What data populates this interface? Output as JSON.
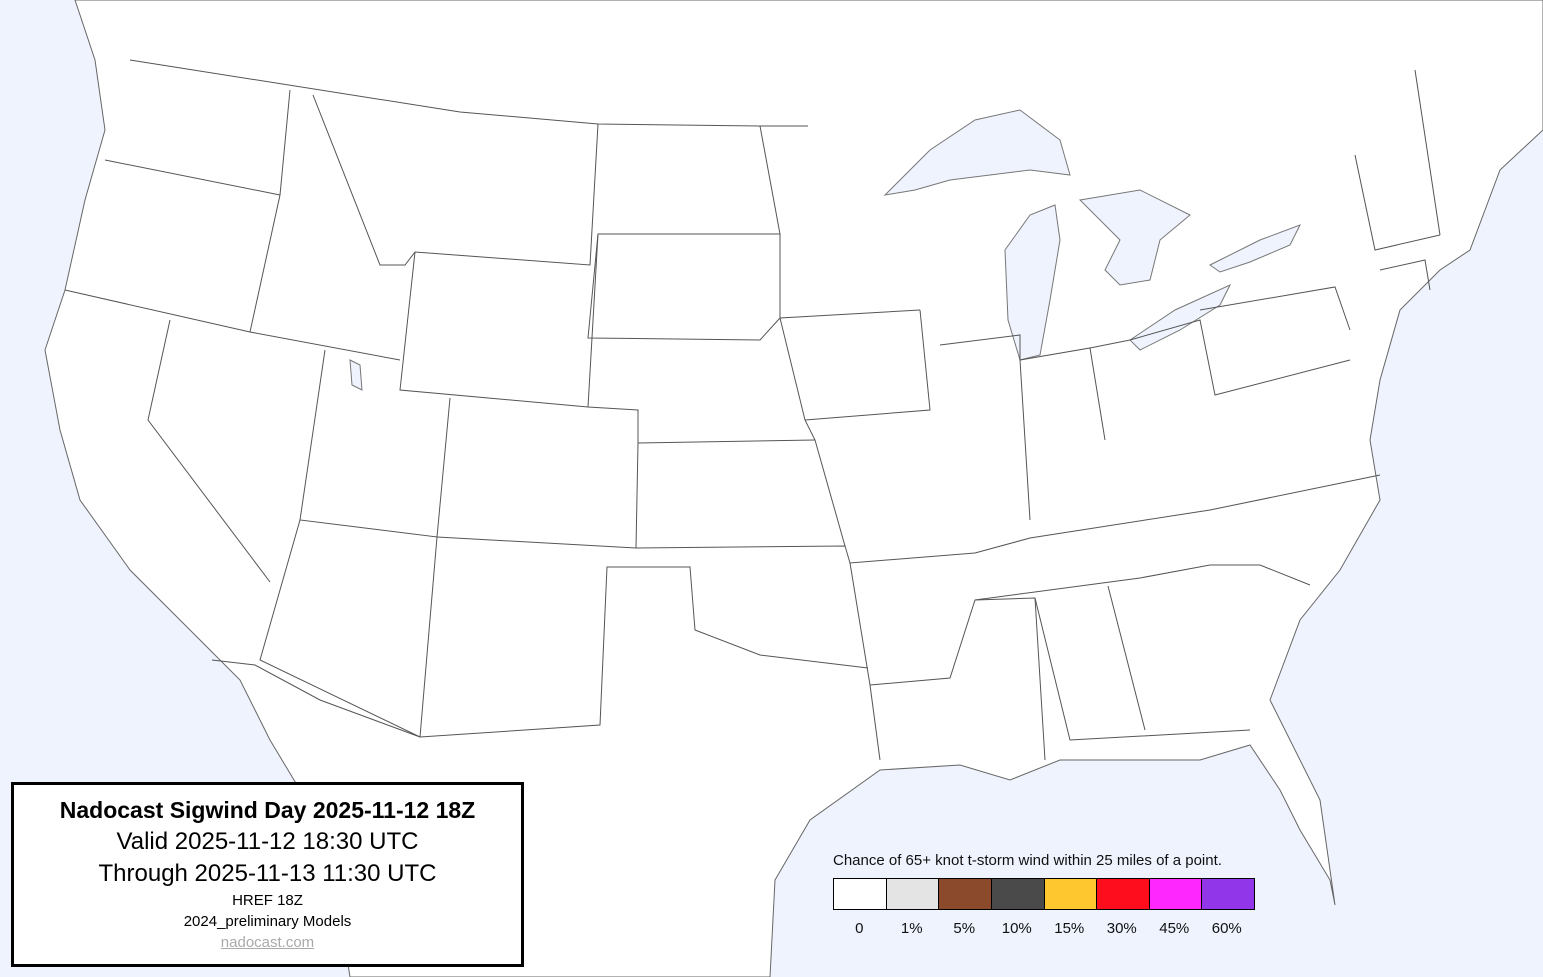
{
  "map": {
    "ocean_color": "#eef3fe",
    "land_color": "#ffffff",
    "border_color": "#555555"
  },
  "info": {
    "title": "Nadocast Sigwind Day 2025-11-12 18Z",
    "valid": "Valid 2025-11-12 18:30 UTC",
    "through": "Through 2025-11-13 11:30 UTC",
    "model": "HREF 18Z",
    "models_version": "2024_preliminary Models",
    "link": "nadocast.com"
  },
  "legend": {
    "caption": "Chance of 65+ knot t-storm wind within 25 miles of a point.",
    "items": [
      {
        "label": "0",
        "color": "#ffffff"
      },
      {
        "label": "1%",
        "color": "#e4e4e4"
      },
      {
        "label": "5%",
        "color": "#8b4a2b"
      },
      {
        "label": "10%",
        "color": "#4a4a4a"
      },
      {
        "label": "15%",
        "color": "#fec730"
      },
      {
        "label": "30%",
        "color": "#fe0e1d"
      },
      {
        "label": "45%",
        "color": "#fe28fe"
      },
      {
        "label": "60%",
        "color": "#9136e8"
      }
    ]
  }
}
